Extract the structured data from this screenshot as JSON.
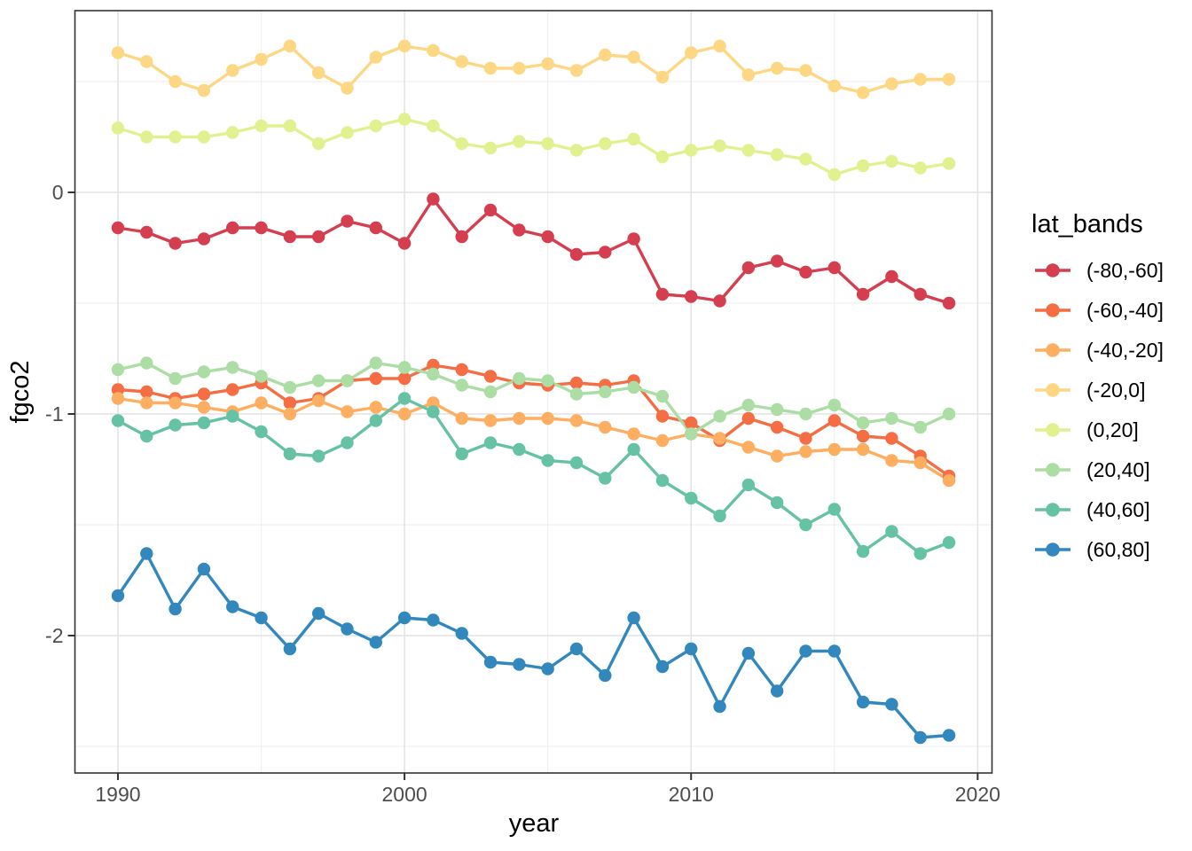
{
  "legend": {
    "title": "lat_bands",
    "position": "right"
  },
  "chart_data": {
    "type": "line",
    "title": "",
    "xlabel": "year",
    "ylabel": "fgco2",
    "grid": true,
    "legend_position": "right",
    "xlim": [
      1988.5,
      2020.5
    ],
    "ylim": [
      -2.62,
      0.82
    ],
    "x_ticks": [
      1990,
      2000,
      2010,
      2020
    ],
    "x_minor_ticks": [
      1995,
      2005,
      2015
    ],
    "y_ticks": [
      0,
      -1,
      -2
    ],
    "y_tick_labels": [
      "0",
      "-1",
      "-2"
    ],
    "y_minor_ticks": [
      0.5,
      -0.5,
      -1.5,
      -2.5
    ],
    "x": [
      1990,
      1991,
      1992,
      1993,
      1994,
      1995,
      1996,
      1997,
      1998,
      1999,
      2000,
      2001,
      2002,
      2003,
      2004,
      2005,
      2006,
      2007,
      2008,
      2009,
      2010,
      2011,
      2012,
      2013,
      2014,
      2015,
      2016,
      2017,
      2018,
      2019
    ],
    "series": [
      {
        "name": "(-80,-60]",
        "color": "#d53e4f",
        "values": [
          -0.16,
          -0.18,
          -0.23,
          -0.21,
          -0.16,
          -0.16,
          -0.2,
          -0.2,
          -0.13,
          -0.16,
          -0.23,
          -0.03,
          -0.2,
          -0.08,
          -0.17,
          -0.2,
          -0.28,
          -0.27,
          -0.21,
          -0.46,
          -0.47,
          -0.49,
          -0.34,
          -0.31,
          -0.36,
          -0.34,
          -0.46,
          -0.38,
          -0.46,
          -0.5
        ]
      },
      {
        "name": "(-60,-40]",
        "color": "#f46d43",
        "values": [
          -0.89,
          -0.9,
          -0.93,
          -0.91,
          -0.89,
          -0.86,
          -0.95,
          -0.93,
          -0.85,
          -0.84,
          -0.84,
          -0.78,
          -0.8,
          -0.83,
          -0.86,
          -0.87,
          -0.86,
          -0.87,
          -0.85,
          -1.01,
          -1.04,
          -1.12,
          -1.02,
          -1.06,
          -1.11,
          -1.03,
          -1.1,
          -1.11,
          -1.19,
          -1.28
        ]
      },
      {
        "name": "(-40,-20]",
        "color": "#fdae61",
        "values": [
          -0.93,
          -0.95,
          -0.95,
          -0.97,
          -0.99,
          -0.95,
          -1.0,
          -0.94,
          -0.99,
          -0.97,
          -1.0,
          -0.95,
          -1.02,
          -1.03,
          -1.02,
          -1.02,
          -1.03,
          -1.06,
          -1.09,
          -1.12,
          -1.09,
          -1.11,
          -1.15,
          -1.19,
          -1.17,
          -1.16,
          -1.16,
          -1.21,
          -1.22,
          -1.3
        ]
      },
      {
        "name": "(-20,0]",
        "color": "#fdd783",
        "values": [
          0.63,
          0.59,
          0.5,
          0.46,
          0.55,
          0.6,
          0.66,
          0.54,
          0.47,
          0.61,
          0.66,
          0.64,
          0.59,
          0.56,
          0.56,
          0.58,
          0.55,
          0.62,
          0.61,
          0.52,
          0.63,
          0.66,
          0.53,
          0.56,
          0.55,
          0.48,
          0.45,
          0.49,
          0.51,
          0.51
        ]
      },
      {
        "name": "(0,20]",
        "color": "#e2f18f",
        "values": [
          0.29,
          0.25,
          0.25,
          0.25,
          0.27,
          0.3,
          0.3,
          0.22,
          0.27,
          0.3,
          0.33,
          0.3,
          0.22,
          0.2,
          0.23,
          0.22,
          0.19,
          0.22,
          0.24,
          0.16,
          0.19,
          0.21,
          0.19,
          0.17,
          0.15,
          0.08,
          0.12,
          0.14,
          0.11,
          0.13
        ]
      },
      {
        "name": "(20,40]",
        "color": "#abdda4",
        "values": [
          -0.8,
          -0.77,
          -0.84,
          -0.81,
          -0.79,
          -0.83,
          -0.88,
          -0.85,
          -0.85,
          -0.77,
          -0.79,
          -0.82,
          -0.87,
          -0.9,
          -0.84,
          -0.85,
          -0.91,
          -0.9,
          -0.88,
          -0.92,
          -1.09,
          -1.01,
          -0.96,
          -0.98,
          -1.0,
          -0.96,
          -1.04,
          -1.02,
          -1.06,
          -1.0
        ]
      },
      {
        "name": "(40,60]",
        "color": "#66c2a5",
        "values": [
          -1.03,
          -1.1,
          -1.05,
          -1.04,
          -1.01,
          -1.08,
          -1.18,
          -1.19,
          -1.13,
          -1.03,
          -0.93,
          -0.99,
          -1.18,
          -1.13,
          -1.16,
          -1.21,
          -1.22,
          -1.29,
          -1.16,
          -1.3,
          -1.38,
          -1.46,
          -1.32,
          -1.4,
          -1.5,
          -1.43,
          -1.62,
          -1.53,
          -1.63,
          -1.58
        ]
      },
      {
        "name": "(60,80]",
        "color": "#3288bd",
        "values": [
          -1.82,
          -1.63,
          -1.88,
          -1.7,
          -1.87,
          -1.92,
          -2.06,
          -1.9,
          -1.97,
          -2.03,
          -1.92,
          -1.93,
          -1.99,
          -2.12,
          -2.13,
          -2.15,
          -2.06,
          -2.18,
          -1.92,
          -2.14,
          -2.06,
          -2.32,
          -2.08,
          -2.25,
          -2.07,
          -2.07,
          -2.3,
          -2.31,
          -2.46,
          -2.45
        ]
      }
    ]
  },
  "style": {
    "panel_border_color": "#333333",
    "major_grid_color": "#e4e4e4",
    "minor_grid_color": "#f0f0f0",
    "tick_color": "#333333",
    "tick_label_color": "#4d4d4d",
    "background": "#ffffff"
  }
}
